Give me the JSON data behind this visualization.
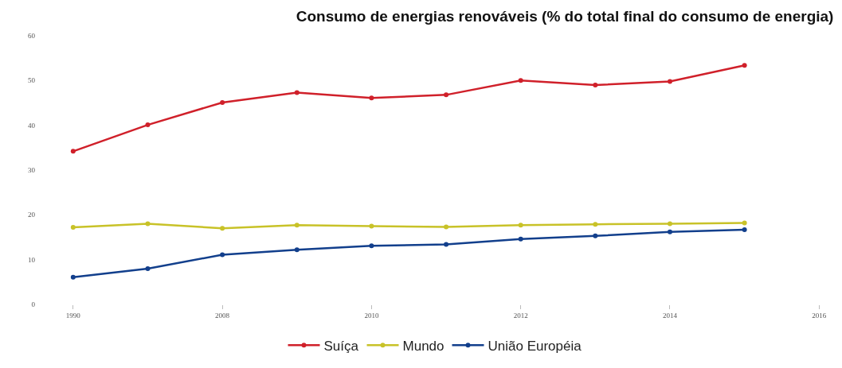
{
  "chart_data": {
    "type": "line",
    "title": "Consumo de energias renováveis (% do total final do consumo de energia)",
    "categories": [
      "1990",
      null,
      "2008",
      null,
      "2010",
      null,
      "2012",
      null,
      "2014",
      null,
      "2016"
    ],
    "series": [
      {
        "name": "Suíça",
        "color": "#d0202a",
        "values": [
          34.2,
          40.1,
          45.1,
          47.3,
          46.1,
          46.8,
          50.0,
          49.0,
          49.8,
          53.4,
          null
        ]
      },
      {
        "name": "Mundo",
        "color": "#c8c228",
        "values": [
          17.2,
          18.0,
          17.0,
          17.7,
          17.5,
          17.3,
          17.7,
          17.9,
          18.0,
          18.2,
          null
        ]
      },
      {
        "name": "União Européia",
        "color": "#123f8c",
        "values": [
          6.1,
          8.0,
          11.1,
          12.2,
          13.1,
          13.4,
          14.6,
          15.3,
          16.2,
          16.7,
          null
        ]
      }
    ],
    "ylim": [
      0,
      60
    ],
    "yticks": [
      0,
      10,
      20,
      30,
      40,
      50,
      60
    ],
    "legend": "bottom",
    "marker": "circle",
    "line_style": "solid"
  }
}
